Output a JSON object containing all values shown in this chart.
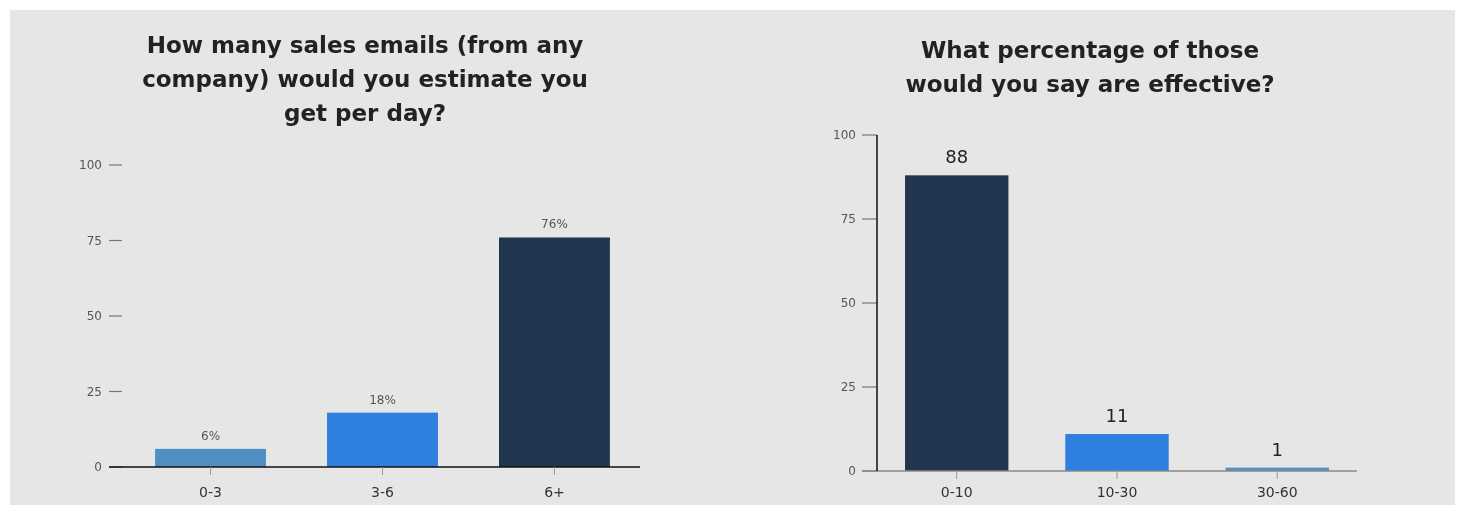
{
  "chart_data": [
    {
      "type": "bar",
      "title": "How many sales emails (from any company) would you estimate you get per day?",
      "categories": [
        "0-3",
        "3-6",
        "6+"
      ],
      "values": [
        6,
        18,
        76
      ],
      "colors": [
        "#4f8fc4",
        "#2f7fe0",
        "#22354f"
      ],
      "value_labels": [
        "6%",
        "18%",
        "76%"
      ],
      "ylim": [
        0,
        100
      ],
      "yticks": [
        0,
        25,
        50,
        75,
        100
      ]
    },
    {
      "type": "bar",
      "title": "What percentage of those would you say are effective?",
      "categories": [
        "0-10",
        "10-30",
        "30-60"
      ],
      "values": [
        88,
        11,
        1
      ],
      "colors": [
        "#22354f",
        "#2f7fe0",
        "#4f8fc4"
      ],
      "data_labels": true,
      "ylim": [
        0,
        100
      ],
      "yticks": [
        0,
        25,
        50,
        75,
        100
      ]
    }
  ]
}
